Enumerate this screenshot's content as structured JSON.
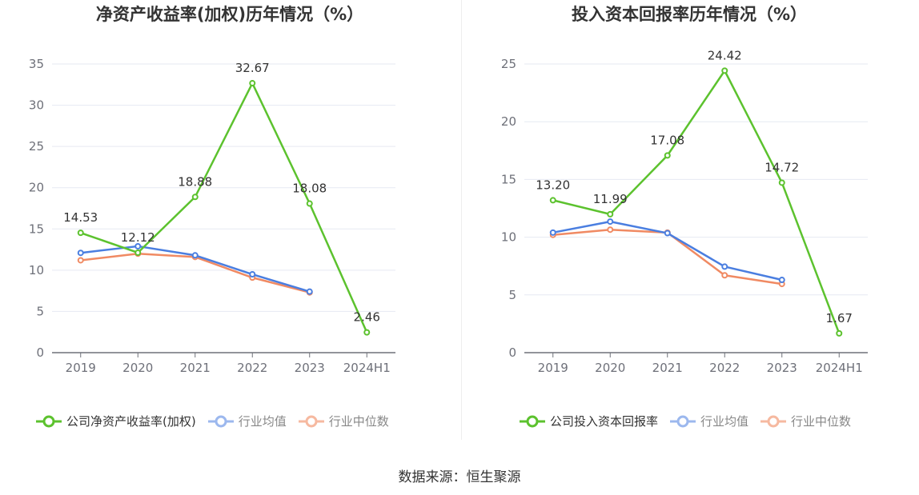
{
  "chart_data": [
    {
      "type": "line",
      "title": "净资产收益率(加权)历年情况（%）",
      "categories": [
        "2019",
        "2020",
        "2021",
        "2022",
        "2023",
        "2024H1"
      ],
      "ylim": [
        0,
        35
      ],
      "yticks": [
        0,
        5,
        10,
        15,
        20,
        25,
        30,
        35
      ],
      "grid": true,
      "legend_position": "bottom",
      "series": [
        {
          "name": "公司净资产收益率(加权)",
          "color": "#5cc22e",
          "values": [
            14.53,
            12.12,
            18.88,
            32.67,
            18.08,
            2.46
          ],
          "labels": [
            "14.53",
            "12.12",
            "18.88",
            "32.67",
            "18.08",
            "2.46"
          ]
        },
        {
          "name": "行业均值",
          "color": "#4a7ee0",
          "values": [
            12.1,
            12.9,
            11.8,
            9.5,
            7.4,
            null
          ]
        },
        {
          "name": "行业中位数",
          "color": "#f08a63",
          "values": [
            11.2,
            12.0,
            11.6,
            9.1,
            7.3,
            null
          ]
        }
      ]
    },
    {
      "type": "line",
      "title": "投入资本回报率历年情况（%）",
      "categories": [
        "2019",
        "2020",
        "2021",
        "2022",
        "2023",
        "2024H1"
      ],
      "ylim": [
        0,
        25
      ],
      "yticks": [
        0,
        5,
        10,
        15,
        20,
        25
      ],
      "grid": true,
      "legend_position": "bottom",
      "series": [
        {
          "name": "公司投入资本回报率",
          "color": "#5cc22e",
          "values": [
            13.2,
            11.99,
            17.08,
            24.42,
            14.72,
            1.67
          ],
          "labels": [
            "13.20",
            "11.99",
            "17.08",
            "24.42",
            "14.72",
            "1.67"
          ]
        },
        {
          "name": "行业均值",
          "color": "#4a7ee0",
          "values": [
            10.4,
            11.35,
            10.35,
            7.45,
            6.3,
            null
          ]
        },
        {
          "name": "行业中位数",
          "color": "#f08a63",
          "values": [
            10.2,
            10.65,
            10.4,
            6.7,
            5.95,
            null
          ]
        }
      ]
    }
  ],
  "source": "数据来源：恒生聚源"
}
